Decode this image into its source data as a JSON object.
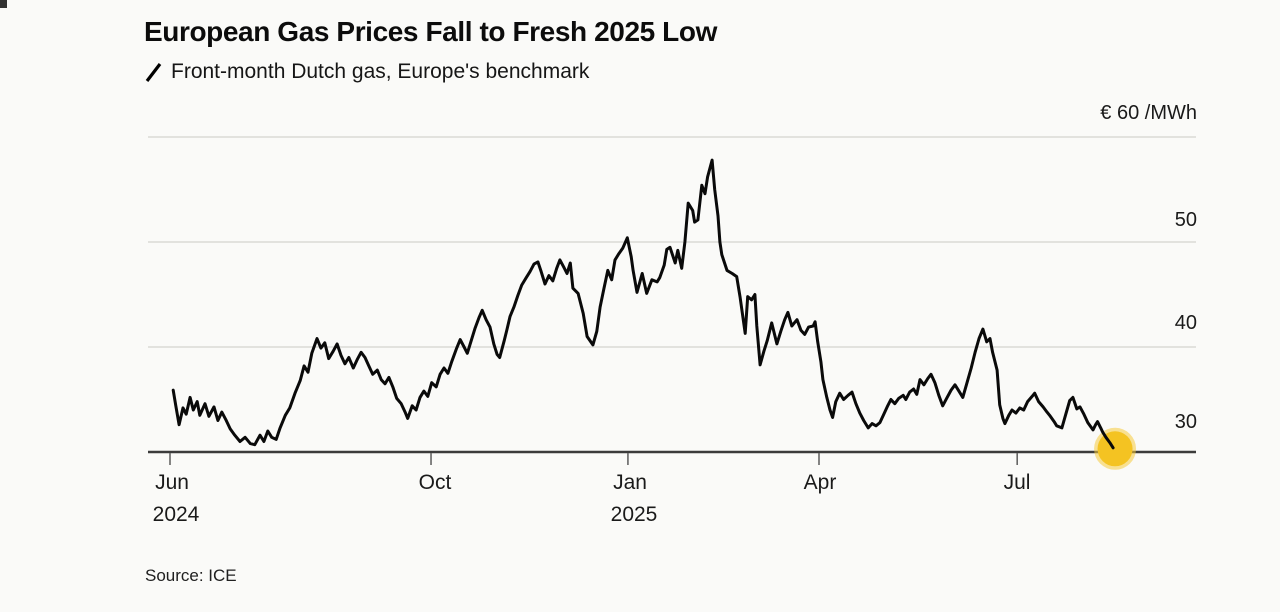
{
  "header": {
    "title": "European Gas Prices Fall to Fresh 2025 Low",
    "subtitle": "Front-month Dutch gas, Europe's benchmark"
  },
  "source": "Source: ICE",
  "colors": {
    "line": "#0a0a0a",
    "marker": "#F4C322",
    "marker_halo": "#F6CB3C",
    "grid": "#d9d9d6",
    "axis": "#3b3b3b",
    "tick": "#666666",
    "background": "#fafaf8",
    "text": "#1a1a1a"
  },
  "y_axis": {
    "unit_label": "€ 60 /MWh",
    "tick_labels": [
      "50",
      "40",
      "30"
    ]
  },
  "x_axis": {
    "ticks": [
      {
        "label": "Jun",
        "year": "2024",
        "t": 0
      },
      {
        "label": "Oct",
        "t": 4.03
      },
      {
        "label": "Jan",
        "year": "2025",
        "t": 7.07
      },
      {
        "label": "Apr",
        "t": 10.02
      },
      {
        "label": "Jul",
        "t": 13.08
      }
    ]
  },
  "chart_data": {
    "type": "line",
    "title": "European Gas Prices Fall to Fresh 2025 Low",
    "subtitle": "Front-month Dutch gas, Europe's benchmark",
    "unit": "EUR/MWh",
    "x_unit": "months since 2024-06-01",
    "x_range": [
      0,
      14.56
    ],
    "ylim": [
      28,
      62
    ],
    "gridlines": [
      40,
      50,
      60
    ],
    "baseline": 30,
    "legend_position": "top-left",
    "series": [
      {
        "name": "Front-month Dutch gas (TTF)",
        "points": [
          [
            0.05,
            35.9
          ],
          [
            0.09,
            34.4
          ],
          [
            0.14,
            32.6
          ],
          [
            0.2,
            34.2
          ],
          [
            0.25,
            33.6
          ],
          [
            0.31,
            35.2
          ],
          [
            0.36,
            34.0
          ],
          [
            0.42,
            34.8
          ],
          [
            0.46,
            33.5
          ],
          [
            0.54,
            34.6
          ],
          [
            0.6,
            33.4
          ],
          [
            0.68,
            34.3
          ],
          [
            0.74,
            33.0
          ],
          [
            0.8,
            33.8
          ],
          [
            0.86,
            33.1
          ],
          [
            0.93,
            32.2
          ],
          [
            1.0,
            31.6
          ],
          [
            1.08,
            31.0
          ],
          [
            1.16,
            31.4
          ],
          [
            1.24,
            30.8
          ],
          [
            1.31,
            30.7
          ],
          [
            1.39,
            31.6
          ],
          [
            1.45,
            31.0
          ],
          [
            1.51,
            32.0
          ],
          [
            1.57,
            31.4
          ],
          [
            1.64,
            31.2
          ],
          [
            1.7,
            32.3
          ],
          [
            1.78,
            33.5
          ],
          [
            1.85,
            34.2
          ],
          [
            1.93,
            35.6
          ],
          [
            2.01,
            36.8
          ],
          [
            2.07,
            38.2
          ],
          [
            2.13,
            37.6
          ],
          [
            2.19,
            39.4
          ],
          [
            2.27,
            40.8
          ],
          [
            2.33,
            39.9
          ],
          [
            2.39,
            40.4
          ],
          [
            2.45,
            38.9
          ],
          [
            2.52,
            39.6
          ],
          [
            2.58,
            40.3
          ],
          [
            2.64,
            39.2
          ],
          [
            2.7,
            38.4
          ],
          [
            2.76,
            39.0
          ],
          [
            2.83,
            38.0
          ],
          [
            2.89,
            38.8
          ],
          [
            2.95,
            39.5
          ],
          [
            3.01,
            39.0
          ],
          [
            3.07,
            38.2
          ],
          [
            3.13,
            37.4
          ],
          [
            3.2,
            37.8
          ],
          [
            3.26,
            36.9
          ],
          [
            3.32,
            36.5
          ],
          [
            3.38,
            37.1
          ],
          [
            3.44,
            36.2
          ],
          [
            3.5,
            35.1
          ],
          [
            3.57,
            34.6
          ],
          [
            3.63,
            33.8
          ],
          [
            3.67,
            33.2
          ],
          [
            3.74,
            34.4
          ],
          [
            3.8,
            34.0
          ],
          [
            3.86,
            35.2
          ],
          [
            3.92,
            35.8
          ],
          [
            3.98,
            35.3
          ],
          [
            4.04,
            36.6
          ],
          [
            4.11,
            36.2
          ],
          [
            4.17,
            37.4
          ],
          [
            4.23,
            38.0
          ],
          [
            4.29,
            37.5
          ],
          [
            4.35,
            38.6
          ],
          [
            4.42,
            39.8
          ],
          [
            4.48,
            40.7
          ],
          [
            4.54,
            40.0
          ],
          [
            4.59,
            39.4
          ],
          [
            4.65,
            40.6
          ],
          [
            4.71,
            41.8
          ],
          [
            4.77,
            42.8
          ],
          [
            4.82,
            43.5
          ],
          [
            4.88,
            42.6
          ],
          [
            4.94,
            41.9
          ],
          [
            5.0,
            40.3
          ],
          [
            5.05,
            39.3
          ],
          [
            5.09,
            39.0
          ],
          [
            5.16,
            40.6
          ],
          [
            5.2,
            41.6
          ],
          [
            5.25,
            42.9
          ],
          [
            5.31,
            43.8
          ],
          [
            5.37,
            44.9
          ],
          [
            5.43,
            45.9
          ],
          [
            5.5,
            46.6
          ],
          [
            5.56,
            47.2
          ],
          [
            5.62,
            47.9
          ],
          [
            5.68,
            48.1
          ],
          [
            5.73,
            47.2
          ],
          [
            5.79,
            46.0
          ],
          [
            5.85,
            46.8
          ],
          [
            5.91,
            46.3
          ],
          [
            5.97,
            47.5
          ],
          [
            6.02,
            48.3
          ],
          [
            6.08,
            47.6
          ],
          [
            6.13,
            47.0
          ],
          [
            6.18,
            48.0
          ],
          [
            6.22,
            45.6
          ],
          [
            6.3,
            45.1
          ],
          [
            6.38,
            43.2
          ],
          [
            6.44,
            41.0
          ],
          [
            6.53,
            40.2
          ],
          [
            6.59,
            41.5
          ],
          [
            6.64,
            43.8
          ],
          [
            6.7,
            45.6
          ],
          [
            6.76,
            47.3
          ],
          [
            6.82,
            46.4
          ],
          [
            6.87,
            48.3
          ],
          [
            6.93,
            48.9
          ],
          [
            6.99,
            49.4
          ],
          [
            7.06,
            50.4
          ],
          [
            7.12,
            48.6
          ],
          [
            7.15,
            47.3
          ],
          [
            7.21,
            45.2
          ],
          [
            7.29,
            47.0
          ],
          [
            7.36,
            45.1
          ],
          [
            7.44,
            46.4
          ],
          [
            7.52,
            46.2
          ],
          [
            7.56,
            46.6
          ],
          [
            7.63,
            47.8
          ],
          [
            7.67,
            49.3
          ],
          [
            7.72,
            49.5
          ],
          [
            7.8,
            48.0
          ],
          [
            7.84,
            49.2
          ],
          [
            7.9,
            47.5
          ],
          [
            7.95,
            50.0
          ],
          [
            8.0,
            53.7
          ],
          [
            8.07,
            53.0
          ],
          [
            8.1,
            51.9
          ],
          [
            8.15,
            52.1
          ],
          [
            8.21,
            55.4
          ],
          [
            8.26,
            54.6
          ],
          [
            8.3,
            56.2
          ],
          [
            8.37,
            57.8
          ],
          [
            8.41,
            55.0
          ],
          [
            8.46,
            52.5
          ],
          [
            8.49,
            50.0
          ],
          [
            8.52,
            48.8
          ],
          [
            8.6,
            47.3
          ],
          [
            8.68,
            47.0
          ],
          [
            8.75,
            46.7
          ],
          [
            8.8,
            44.8
          ],
          [
            8.88,
            41.3
          ],
          [
            8.92,
            44.8
          ],
          [
            8.98,
            44.5
          ],
          [
            9.03,
            45.0
          ],
          [
            9.06,
            42.0
          ],
          [
            9.11,
            38.3
          ],
          [
            9.17,
            39.6
          ],
          [
            9.22,
            40.6
          ],
          [
            9.29,
            42.3
          ],
          [
            9.37,
            40.3
          ],
          [
            9.43,
            41.5
          ],
          [
            9.49,
            42.6
          ],
          [
            9.54,
            43.3
          ],
          [
            9.6,
            42.0
          ],
          [
            9.68,
            42.6
          ],
          [
            9.74,
            41.6
          ],
          [
            9.8,
            41.2
          ],
          [
            9.86,
            41.9
          ],
          [
            9.93,
            42.0
          ],
          [
            9.96,
            42.4
          ],
          [
            10.0,
            40.5
          ],
          [
            10.05,
            38.6
          ],
          [
            10.08,
            36.9
          ],
          [
            10.14,
            35.2
          ],
          [
            10.19,
            34.0
          ],
          [
            10.23,
            33.3
          ],
          [
            10.28,
            34.8
          ],
          [
            10.34,
            35.6
          ],
          [
            10.4,
            35.0
          ],
          [
            10.47,
            35.4
          ],
          [
            10.53,
            35.7
          ],
          [
            10.59,
            34.6
          ],
          [
            10.65,
            33.7
          ],
          [
            10.71,
            33.0
          ],
          [
            10.78,
            32.3
          ],
          [
            10.84,
            32.7
          ],
          [
            10.9,
            32.5
          ],
          [
            10.96,
            32.8
          ],
          [
            11.02,
            33.6
          ],
          [
            11.08,
            34.4
          ],
          [
            11.13,
            35.0
          ],
          [
            11.19,
            34.6
          ],
          [
            11.25,
            35.1
          ],
          [
            11.32,
            35.4
          ],
          [
            11.36,
            35.0
          ],
          [
            11.42,
            35.7
          ],
          [
            11.48,
            36.0
          ],
          [
            11.53,
            35.5
          ],
          [
            11.58,
            36.9
          ],
          [
            11.64,
            36.4
          ],
          [
            11.7,
            37.0
          ],
          [
            11.75,
            37.4
          ],
          [
            11.81,
            36.6
          ],
          [
            11.87,
            35.4
          ],
          [
            11.93,
            34.4
          ],
          [
            11.99,
            35.1
          ],
          [
            12.06,
            35.9
          ],
          [
            12.12,
            36.4
          ],
          [
            12.18,
            35.8
          ],
          [
            12.24,
            35.2
          ],
          [
            12.3,
            36.5
          ],
          [
            12.37,
            38.0
          ],
          [
            12.43,
            39.5
          ],
          [
            12.49,
            40.8
          ],
          [
            12.55,
            41.7
          ],
          [
            12.61,
            40.5
          ],
          [
            12.66,
            40.8
          ],
          [
            12.7,
            39.5
          ],
          [
            12.77,
            37.8
          ],
          [
            12.81,
            34.5
          ],
          [
            12.86,
            33.2
          ],
          [
            12.89,
            32.7
          ],
          [
            12.95,
            33.5
          ],
          [
            13.0,
            34.0
          ],
          [
            13.06,
            33.7
          ],
          [
            13.12,
            34.2
          ],
          [
            13.18,
            34.0
          ],
          [
            13.24,
            34.8
          ],
          [
            13.31,
            35.3
          ],
          [
            13.35,
            35.6
          ],
          [
            13.41,
            34.8
          ],
          [
            13.48,
            34.3
          ],
          [
            13.54,
            33.8
          ],
          [
            13.58,
            33.5
          ],
          [
            13.65,
            32.9
          ],
          [
            13.69,
            32.5
          ],
          [
            13.77,
            32.3
          ],
          [
            13.83,
            33.6
          ],
          [
            13.89,
            34.9
          ],
          [
            13.94,
            35.2
          ],
          [
            14.0,
            34.1
          ],
          [
            14.05,
            34.3
          ],
          [
            14.11,
            33.6
          ],
          [
            14.17,
            32.8
          ],
          [
            14.25,
            32.1
          ],
          [
            14.29,
            32.6
          ],
          [
            14.32,
            32.9
          ],
          [
            14.37,
            32.3
          ],
          [
            14.4,
            31.9
          ],
          [
            14.45,
            31.4
          ],
          [
            14.51,
            30.9
          ],
          [
            14.56,
            30.4
          ]
        ]
      }
    ],
    "latest_point": {
      "t": 14.56,
      "value": 30.4
    }
  }
}
